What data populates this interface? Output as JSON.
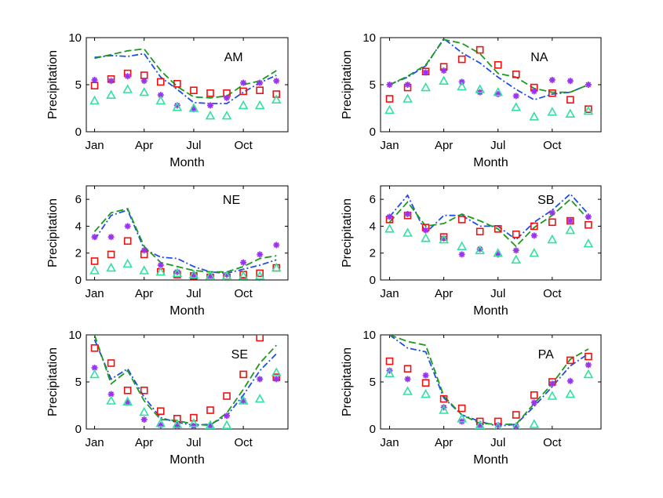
{
  "colors": {
    "line_blue": "#1f4fe8",
    "line_green": "#1c9a1c",
    "square_red": "#ee1111",
    "star_purple": "#9933ee",
    "triangle_teal": "#33e0a0"
  },
  "chart_data": [
    {
      "type": "line",
      "title": "AM",
      "xlabel": "Month",
      "ylabel": "Precipitation",
      "ylim": [
        0,
        10
      ],
      "yticks": [
        0,
        5,
        10
      ],
      "xtick_positions": [
        1,
        4,
        7,
        10
      ],
      "xtick_labels": [
        "Jan",
        "Apr",
        "Jul",
        "Oct"
      ],
      "x": [
        1,
        2,
        3,
        4,
        5,
        6,
        7,
        8,
        9,
        10,
        11,
        12
      ],
      "series": [
        {
          "name": "blue-dashdot",
          "style": "dashdot",
          "color": "#1f4fe8",
          "values": [
            7.9,
            8.1,
            8.0,
            8.3,
            5.8,
            4.5,
            3.1,
            3.0,
            3.0,
            4.2,
            5.2,
            6.0
          ]
        },
        {
          "name": "green-dash",
          "style": "dash",
          "color": "#1c9a1c",
          "values": [
            7.8,
            8.2,
            8.6,
            8.8,
            6.5,
            4.8,
            3.7,
            3.6,
            3.8,
            5.0,
            5.4,
            6.5
          ]
        },
        {
          "name": "red-squares",
          "style": "square",
          "color": "#ee1111",
          "values": [
            4.9,
            5.6,
            6.2,
            6.0,
            5.3,
            5.1,
            4.4,
            4.1,
            4.1,
            4.3,
            4.4,
            4.0
          ]
        },
        {
          "name": "purple-stars",
          "style": "star",
          "color": "#9933ee",
          "values": [
            5.5,
            5.4,
            5.9,
            5.4,
            3.9,
            2.8,
            2.4,
            2.8,
            3.6,
            5.2,
            5.2,
            5.4
          ]
        },
        {
          "name": "teal-triangles",
          "style": "triangle",
          "color": "#33e0a0",
          "values": [
            3.3,
            3.9,
            4.5,
            4.2,
            3.3,
            2.6,
            2.5,
            1.7,
            1.7,
            2.8,
            2.8,
            3.4
          ]
        }
      ]
    },
    {
      "type": "line",
      "title": "NA",
      "xlabel": "Month",
      "ylabel": "Precipitation",
      "ylim": [
        0,
        10
      ],
      "yticks": [
        0,
        5,
        10
      ],
      "xtick_positions": [
        1,
        4,
        7,
        10
      ],
      "xtick_labels": [
        "Jan",
        "Apr",
        "Jul",
        "Oct"
      ],
      "x": [
        1,
        2,
        3,
        4,
        5,
        6,
        7,
        8,
        9,
        10,
        11,
        12
      ],
      "series": [
        {
          "name": "blue-dashdot",
          "style": "dashdot",
          "color": "#1f4fe8",
          "values": [
            5.0,
            5.8,
            7.0,
            9.9,
            8.4,
            7.3,
            5.8,
            4.5,
            3.4,
            4.0,
            4.2,
            5.0
          ]
        },
        {
          "name": "green-dash",
          "style": "dash",
          "color": "#1c9a1c",
          "values": [
            5.0,
            5.9,
            7.1,
            9.8,
            9.4,
            8.3,
            6.2,
            5.8,
            4.6,
            4.2,
            4.2,
            5.0
          ]
        },
        {
          "name": "red-squares",
          "style": "square",
          "color": "#ee1111",
          "values": [
            3.5,
            4.7,
            6.4,
            6.9,
            7.7,
            8.7,
            7.1,
            6.1,
            4.7,
            4.1,
            3.4,
            2.4
          ]
        },
        {
          "name": "purple-stars",
          "style": "star",
          "color": "#9933ee",
          "values": [
            5.0,
            5.0,
            6.3,
            6.5,
            5.3,
            4.2,
            4.0,
            3.8,
            4.3,
            5.5,
            5.4,
            5.0
          ]
        },
        {
          "name": "teal-triangles",
          "style": "triangle",
          "color": "#33e0a0",
          "values": [
            2.3,
            3.5,
            4.7,
            5.4,
            4.8,
            4.5,
            4.2,
            2.6,
            1.6,
            2.1,
            1.9,
            2.2
          ]
        }
      ]
    },
    {
      "type": "line",
      "title": "NE",
      "xlabel": "Month",
      "ylabel": "Precipitation",
      "ylim": [
        0,
        7
      ],
      "yticks": [
        0,
        2,
        4,
        6
      ],
      "xtick_positions": [
        1,
        4,
        7,
        10
      ],
      "xtick_labels": [
        "Jan",
        "Apr",
        "Jul",
        "Oct"
      ],
      "x": [
        1,
        2,
        3,
        4,
        5,
        6,
        7,
        8,
        9,
        10,
        11,
        12
      ],
      "series": [
        {
          "name": "blue-dashdot",
          "style": "dashdot",
          "color": "#1f4fe8",
          "values": [
            3.0,
            4.8,
            5.2,
            2.3,
            1.7,
            1.6,
            1.0,
            0.6,
            0.5,
            0.8,
            1.1,
            1.5
          ]
        },
        {
          "name": "green-dash",
          "style": "dash",
          "color": "#1c9a1c",
          "values": [
            3.6,
            5.0,
            5.3,
            2.5,
            1.3,
            1.0,
            0.7,
            0.6,
            0.6,
            1.0,
            1.6,
            1.8
          ]
        },
        {
          "name": "red-squares",
          "style": "square",
          "color": "#ee1111",
          "values": [
            1.4,
            1.9,
            2.9,
            1.9,
            0.6,
            0.4,
            0.3,
            0.2,
            0.2,
            0.4,
            0.5,
            0.9
          ]
        },
        {
          "name": "purple-stars",
          "style": "star",
          "color": "#9933ee",
          "values": [
            3.2,
            3.2,
            4.0,
            2.2,
            1.1,
            0.6,
            0.3,
            0.3,
            0.4,
            1.3,
            1.9,
            2.6
          ]
        },
        {
          "name": "teal-triangles",
          "style": "triangle",
          "color": "#33e0a0",
          "values": [
            0.7,
            0.9,
            1.2,
            0.7,
            0.6,
            0.5,
            0.4,
            0.3,
            0.3,
            0.3,
            0.3,
            0.9
          ]
        }
      ]
    },
    {
      "type": "line",
      "title": "SB",
      "xlabel": "Month",
      "ylabel": "Precipitation",
      "ylim": [
        0,
        7
      ],
      "yticks": [
        0,
        2,
        4,
        6
      ],
      "xtick_positions": [
        1,
        4,
        7,
        10
      ],
      "xtick_labels": [
        "Jan",
        "Apr",
        "Jul",
        "Oct"
      ],
      "x": [
        1,
        2,
        3,
        4,
        5,
        6,
        7,
        8,
        9,
        10,
        11,
        12
      ],
      "series": [
        {
          "name": "blue-dashdot",
          "style": "dashdot",
          "color": "#1f4fe8",
          "values": [
            4.7,
            6.3,
            3.5,
            4.8,
            4.8,
            4.0,
            4.0,
            3.0,
            4.3,
            5.2,
            6.4,
            4.9
          ]
        },
        {
          "name": "green-dash",
          "style": "dash",
          "color": "#1c9a1c",
          "values": [
            4.3,
            5.8,
            4.0,
            4.2,
            4.9,
            4.4,
            3.8,
            2.5,
            3.9,
            4.8,
            6.0,
            4.5
          ]
        },
        {
          "name": "red-squares",
          "style": "square",
          "color": "#ee1111",
          "values": [
            4.5,
            4.8,
            3.9,
            3.2,
            4.5,
            3.6,
            3.8,
            3.4,
            4.0,
            4.3,
            4.4,
            4.1
          ]
        },
        {
          "name": "purple-stars",
          "style": "star",
          "color": "#9933ee",
          "values": [
            4.7,
            4.9,
            3.7,
            3.1,
            1.9,
            2.3,
            1.9,
            2.2,
            3.3,
            5.0,
            4.4,
            4.7
          ]
        },
        {
          "name": "teal-triangles",
          "style": "triangle",
          "color": "#33e0a0",
          "values": [
            3.8,
            3.5,
            3.1,
            3.0,
            2.5,
            2.2,
            2.0,
            1.5,
            2.0,
            3.0,
            3.7,
            2.7
          ]
        }
      ]
    },
    {
      "type": "line",
      "title": "SE",
      "xlabel": "Month",
      "ylabel": "Precipitation",
      "ylim": [
        0,
        10
      ],
      "yticks": [
        0,
        5,
        10
      ],
      "xtick_positions": [
        1,
        4,
        7,
        10
      ],
      "xtick_labels": [
        "Jan",
        "Apr",
        "Jul",
        "Oct"
      ],
      "x": [
        1,
        2,
        3,
        4,
        5,
        6,
        7,
        8,
        9,
        10,
        11,
        12
      ],
      "series": [
        {
          "name": "blue-dashdot",
          "style": "dashdot",
          "color": "#1f4fe8",
          "values": [
            9.5,
            5.3,
            6.4,
            3.4,
            1.2,
            0.7,
            0.4,
            0.5,
            1.4,
            3.6,
            6.2,
            8.0
          ]
        },
        {
          "name": "green-dash",
          "style": "dash",
          "color": "#1c9a1c",
          "values": [
            10.0,
            4.8,
            6.2,
            3.0,
            1.0,
            0.9,
            0.5,
            0.4,
            1.7,
            4.2,
            7.0,
            8.9
          ]
        },
        {
          "name": "red-squares",
          "style": "square",
          "color": "#ee1111",
          "values": [
            8.6,
            7.0,
            4.1,
            4.1,
            1.9,
            1.1,
            1.2,
            2.0,
            3.5,
            5.8,
            9.7,
            5.5
          ]
        },
        {
          "name": "purple-stars",
          "style": "star",
          "color": "#9933ee",
          "values": [
            6.5,
            3.7,
            2.8,
            1.0,
            0.4,
            0.3,
            0.3,
            0.3,
            1.4,
            3.0,
            5.3,
            5.3
          ]
        },
        {
          "name": "teal-triangles",
          "style": "triangle",
          "color": "#33e0a0",
          "values": [
            5.8,
            3.0,
            2.9,
            1.8,
            0.6,
            0.5,
            0.6,
            0.4,
            0.4,
            3.0,
            3.2,
            6.0
          ]
        }
      ]
    },
    {
      "type": "line",
      "title": "PA",
      "xlabel": "Month",
      "ylabel": "Precipitation",
      "ylim": [
        0,
        10
      ],
      "yticks": [
        0,
        5,
        10
      ],
      "xtick_positions": [
        1,
        4,
        7,
        10
      ],
      "xtick_labels": [
        "Jan",
        "Apr",
        "Jul",
        "Oct"
      ],
      "x": [
        1,
        2,
        3,
        4,
        5,
        6,
        7,
        8,
        9,
        10,
        11,
        12
      ],
      "series": [
        {
          "name": "blue-dashdot",
          "style": "dashdot",
          "color": "#1f4fe8",
          "values": [
            10.0,
            8.6,
            8.2,
            3.3,
            1.5,
            0.8,
            0.3,
            0.5,
            2.4,
            4.5,
            6.7,
            8.0
          ]
        },
        {
          "name": "green-dash",
          "style": "dash",
          "color": "#1c9a1c",
          "values": [
            10.0,
            9.3,
            8.9,
            3.5,
            1.5,
            0.6,
            0.5,
            0.5,
            2.7,
            4.8,
            7.4,
            8.5
          ]
        },
        {
          "name": "red-squares",
          "style": "square",
          "color": "#ee1111",
          "values": [
            7.2,
            6.4,
            4.9,
            3.2,
            2.2,
            0.8,
            0.8,
            1.5,
            3.6,
            5.0,
            7.3,
            7.7
          ]
        },
        {
          "name": "purple-stars",
          "style": "star",
          "color": "#9933ee",
          "values": [
            6.2,
            5.3,
            5.7,
            2.3,
            0.8,
            0.4,
            0.4,
            0.3,
            2.8,
            4.8,
            5.1,
            6.8
          ]
        },
        {
          "name": "teal-triangles",
          "style": "triangle",
          "color": "#33e0a0",
          "values": [
            5.9,
            4.0,
            3.7,
            2.0,
            1.1,
            0.4,
            0.2,
            0.2,
            0.5,
            3.5,
            3.7,
            5.8
          ]
        }
      ]
    }
  ]
}
